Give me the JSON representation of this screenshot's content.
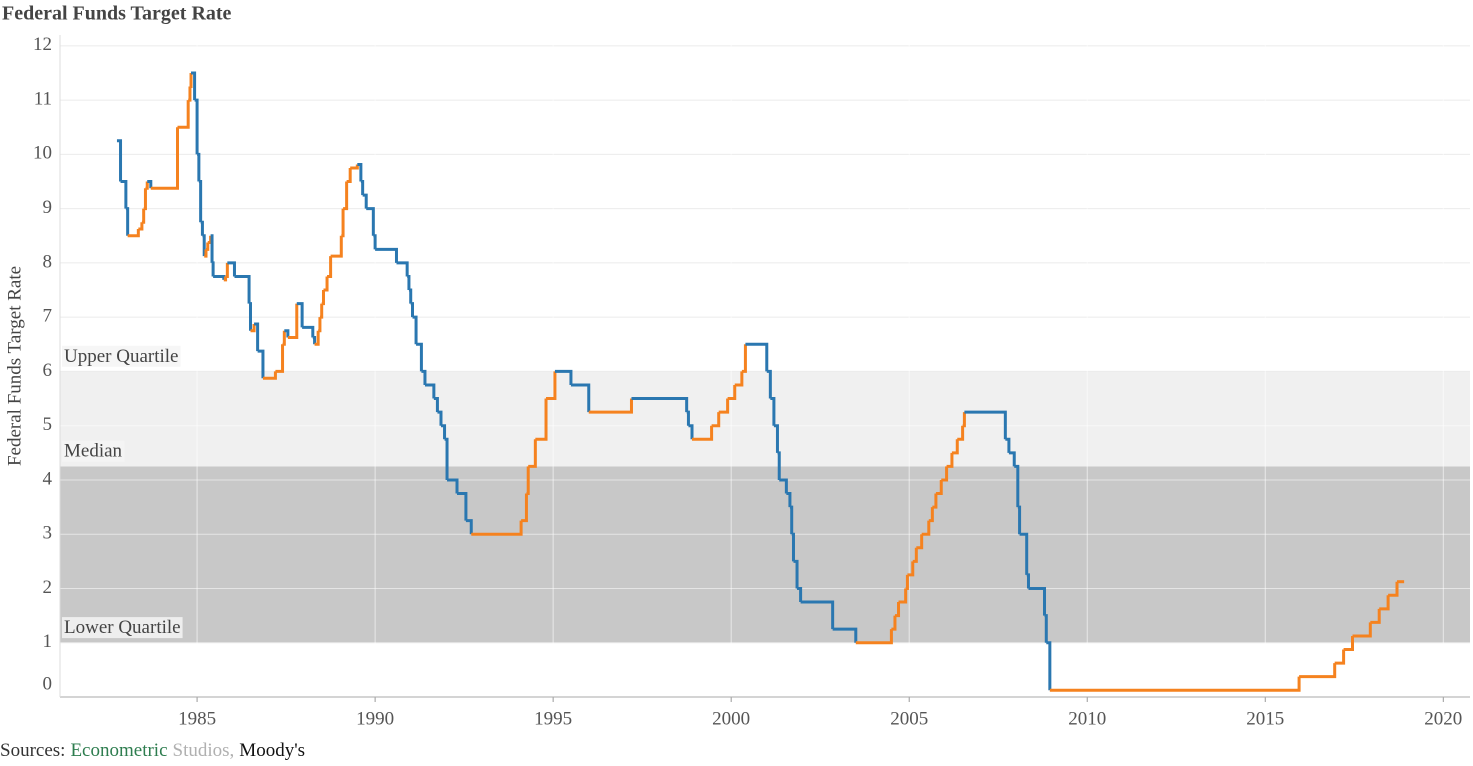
{
  "chart_data": {
    "type": "step-line",
    "title": "Federal Funds Target Rate",
    "y_label": "Federal Funds Target Rate",
    "source": [
      {
        "text": "Sources:",
        "color": "#333333"
      },
      {
        "text": "Econometric",
        "color": "#2e7d4f"
      },
      {
        "text": "Studios,",
        "color": "#b0b0b0"
      },
      {
        "text": "Moody's",
        "color": "#111111"
      }
    ],
    "xlim": [
      1981.15,
      2020.75
    ],
    "xticks": [
      1985,
      1990,
      1995,
      2000,
      2005,
      2010,
      2015,
      2020
    ],
    "ylim": [
      0,
      12.2
    ],
    "yticks": [
      0,
      1,
      2,
      3,
      4,
      5,
      6,
      7,
      8,
      9,
      10,
      11,
      12
    ],
    "grid": true,
    "bands": [
      {
        "label": "Lower Quartile",
        "value": 1,
        "color": "#c8c8c8"
      },
      {
        "label": "Median",
        "value": 4.25,
        "color": "#f0f0f0"
      },
      {
        "label": "Upper Quartile",
        "value": 6
      }
    ],
    "x": [
      1982.75,
      1982.85,
      1983.0,
      1983.05,
      1983.35,
      1983.45,
      1983.5,
      1983.55,
      1983.6,
      1983.7,
      1984.45,
      1984.75,
      1984.8,
      1984.83,
      1984.93,
      1985.0,
      1985.05,
      1985.1,
      1985.15,
      1985.2,
      1985.25,
      1985.3,
      1985.38,
      1985.42,
      1985.45,
      1985.75,
      1985.8,
      1985.85,
      1986.05,
      1986.46,
      1986.5,
      1986.6,
      1986.7,
      1986.85,
      1987.2,
      1987.4,
      1987.45,
      1987.55,
      1987.8,
      1987.95,
      1988.25,
      1988.3,
      1988.4,
      1988.45,
      1988.5,
      1988.55,
      1988.65,
      1988.75,
      1989.05,
      1989.1,
      1989.2,
      1989.3,
      1989.5,
      1989.6,
      1989.65,
      1989.75,
      1989.95,
      1990.0,
      1990.6,
      1990.9,
      1990.95,
      1991.0,
      1991.05,
      1991.15,
      1991.3,
      1991.4,
      1991.65,
      1991.75,
      1991.85,
      1991.95,
      1992.02,
      1992.3,
      1992.55,
      1992.7,
      1994.1,
      1994.25,
      1994.3,
      1994.5,
      1994.8,
      1995.05,
      1995.5,
      1996.0,
      1997.2,
      1998.75,
      1998.8,
      1998.9,
      1999.45,
      1999.65,
      1999.9,
      2000.1,
      2000.3,
      2000.4,
      2001.0,
      2001.1,
      2001.2,
      2001.3,
      2001.35,
      2001.55,
      2001.65,
      2001.7,
      2001.75,
      2001.85,
      2001.95,
      2002.85,
      2003.5,
      2004.5,
      2004.6,
      2004.7,
      2004.9,
      2004.95,
      2005.1,
      2005.2,
      2005.35,
      2005.55,
      2005.65,
      2005.75,
      2005.9,
      2006.05,
      2006.2,
      2006.35,
      2006.5,
      2006.55,
      2007.7,
      2007.8,
      2007.95,
      2008.05,
      2008.1,
      2008.3,
      2008.35,
      2008.8,
      2008.85,
      2008.95,
      2015.95,
      2016.95,
      2017.2,
      2017.45,
      2017.95,
      2018.2,
      2018.45,
      2018.7,
      2018.9
    ],
    "values": [
      10.25,
      9.5,
      9.0,
      8.5,
      8.625,
      8.75,
      9.0,
      9.375,
      9.5,
      9.375,
      10.5,
      11.0,
      11.25,
      11.5,
      11.0,
      10.0,
      9.5,
      8.75,
      8.5,
      8.125,
      8.25,
      8.375,
      8.5,
      8.0,
      7.75,
      7.6875,
      7.75,
      8.0,
      7.75,
      7.25,
      6.75,
      6.875,
      6.375,
      5.875,
      6.0,
      6.5,
      6.75,
      6.625,
      7.25,
      6.8125,
      6.625,
      6.5,
      6.75,
      7.0,
      7.25,
      7.5,
      7.75,
      8.125,
      8.5,
      9.0,
      9.5,
      9.75,
      9.8125,
      9.5,
      9.25,
      9.0,
      8.5,
      8.25,
      8.0,
      7.75,
      7.5,
      7.25,
      7.0,
      6.5,
      6.0,
      5.75,
      5.5,
      5.25,
      5.0,
      4.75,
      4.0,
      3.75,
      3.25,
      3.0,
      3.25,
      3.75,
      4.25,
      4.75,
      5.5,
      6.0,
      5.75,
      5.25,
      5.5,
      5.25,
      5.0,
      4.75,
      5.0,
      5.25,
      5.5,
      5.75,
      6.0,
      6.5,
      6.0,
      5.5,
      5.0,
      4.5,
      4.0,
      3.75,
      3.5,
      3.0,
      2.5,
      2.0,
      1.75,
      1.25,
      1.0,
      1.25,
      1.5,
      1.75,
      2.0,
      2.25,
      2.5,
      2.75,
      3.0,
      3.25,
      3.5,
      3.75,
      4.0,
      4.25,
      4.5,
      4.75,
      5.0,
      5.25,
      4.75,
      4.5,
      4.25,
      3.5,
      3.0,
      2.25,
      2.0,
      1.5,
      1.0,
      0.125,
      0.375,
      0.625,
      0.875,
      1.125,
      1.375,
      1.625,
      1.875,
      2.125,
      2.125
    ],
    "colors": [
      "#2a77b0",
      "#2a77b0",
      "#2a77b0",
      "#2a77b0",
      "#f5821f",
      "#f5821f",
      "#f5821f",
      "#f5821f",
      "#f5821f",
      "#2a77b0",
      "#f5821f",
      "#f5821f",
      "#f5821f",
      "#f5821f",
      "#2a77b0",
      "#2a77b0",
      "#2a77b0",
      "#2a77b0",
      "#2a77b0",
      "#2a77b0",
      "#f5821f",
      "#f5821f",
      "#f5821f",
      "#2a77b0",
      "#2a77b0",
      "#2a77b0",
      "#f5821f",
      "#f5821f",
      "#2a77b0",
      "#2a77b0",
      "#2a77b0",
      "#f5821f",
      "#2a77b0",
      "#2a77b0",
      "#f5821f",
      "#f5821f",
      "#f5821f",
      "#2a77b0",
      "#f5821f",
      "#2a77b0",
      "#2a77b0",
      "#2a77b0",
      "#f5821f",
      "#f5821f",
      "#f5821f",
      "#f5821f",
      "#f5821f",
      "#f5821f",
      "#f5821f",
      "#f5821f",
      "#f5821f",
      "#f5821f",
      "#f5821f",
      "#2a77b0",
      "#2a77b0",
      "#2a77b0",
      "#2a77b0",
      "#2a77b0",
      "#2a77b0",
      "#2a77b0",
      "#2a77b0",
      "#2a77b0",
      "#2a77b0",
      "#2a77b0",
      "#2a77b0",
      "#2a77b0",
      "#2a77b0",
      "#2a77b0",
      "#2a77b0",
      "#2a77b0",
      "#2a77b0",
      "#2a77b0",
      "#2a77b0",
      "#2a77b0",
      "#f5821f",
      "#f5821f",
      "#f5821f",
      "#f5821f",
      "#f5821f",
      "#f5821f",
      "#2a77b0",
      "#2a77b0",
      "#f5821f",
      "#2a77b0",
      "#2a77b0",
      "#2a77b0",
      "#f5821f",
      "#f5821f",
      "#f5821f",
      "#f5821f",
      "#f5821f",
      "#f5821f",
      "#2a77b0",
      "#2a77b0",
      "#2a77b0",
      "#2a77b0",
      "#2a77b0",
      "#2a77b0",
      "#2a77b0",
      "#2a77b0",
      "#2a77b0",
      "#2a77b0",
      "#2a77b0",
      "#2a77b0",
      "#2a77b0",
      "#f5821f",
      "#f5821f",
      "#f5821f",
      "#f5821f",
      "#f5821f",
      "#f5821f",
      "#f5821f",
      "#f5821f",
      "#f5821f",
      "#f5821f",
      "#f5821f",
      "#f5821f",
      "#f5821f",
      "#f5821f",
      "#f5821f",
      "#f5821f",
      "#f5821f",
      "#2a77b0",
      "#2a77b0",
      "#2a77b0",
      "#2a77b0",
      "#2a77b0",
      "#2a77b0",
      "#2a77b0",
      "#2a77b0",
      "#2a77b0",
      "#2a77b0",
      "#f5821f",
      "#f5821f",
      "#f5821f",
      "#f5821f",
      "#f5821f",
      "#f5821f",
      "#f5821f",
      "#f5821f",
      "#f5821f"
    ]
  }
}
